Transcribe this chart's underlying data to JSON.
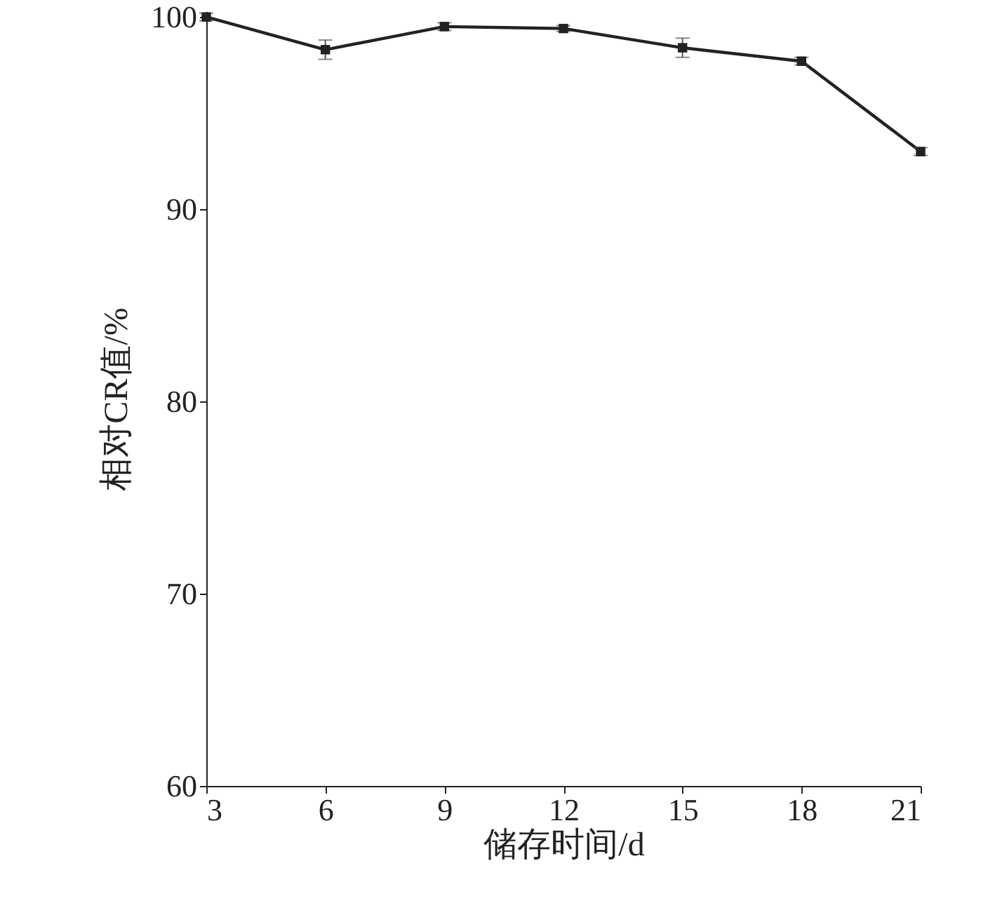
{
  "chart_data": {
    "type": "line",
    "xlabel": "储存时间/d",
    "ylabel": "相对CR值/%",
    "x": [
      3,
      6,
      9,
      12,
      15,
      18,
      21
    ],
    "series": [
      {
        "color": "#222222",
        "values": [
          100.0,
          98.3,
          99.5,
          99.4,
          98.4,
          97.7,
          93.0
        ],
        "errors": [
          0.2,
          0.5,
          0.2,
          0.15,
          0.5,
          0.2,
          0.2
        ]
      }
    ],
    "xlim": [
      3,
      21
    ],
    "xticks": [
      3,
      6,
      9,
      12,
      15,
      18,
      21
    ],
    "ylim": [
      60,
      100.3
    ],
    "yticks": [
      60,
      70,
      80,
      90,
      100
    ],
    "grid": false,
    "marker": "square",
    "line_style": "solid"
  }
}
